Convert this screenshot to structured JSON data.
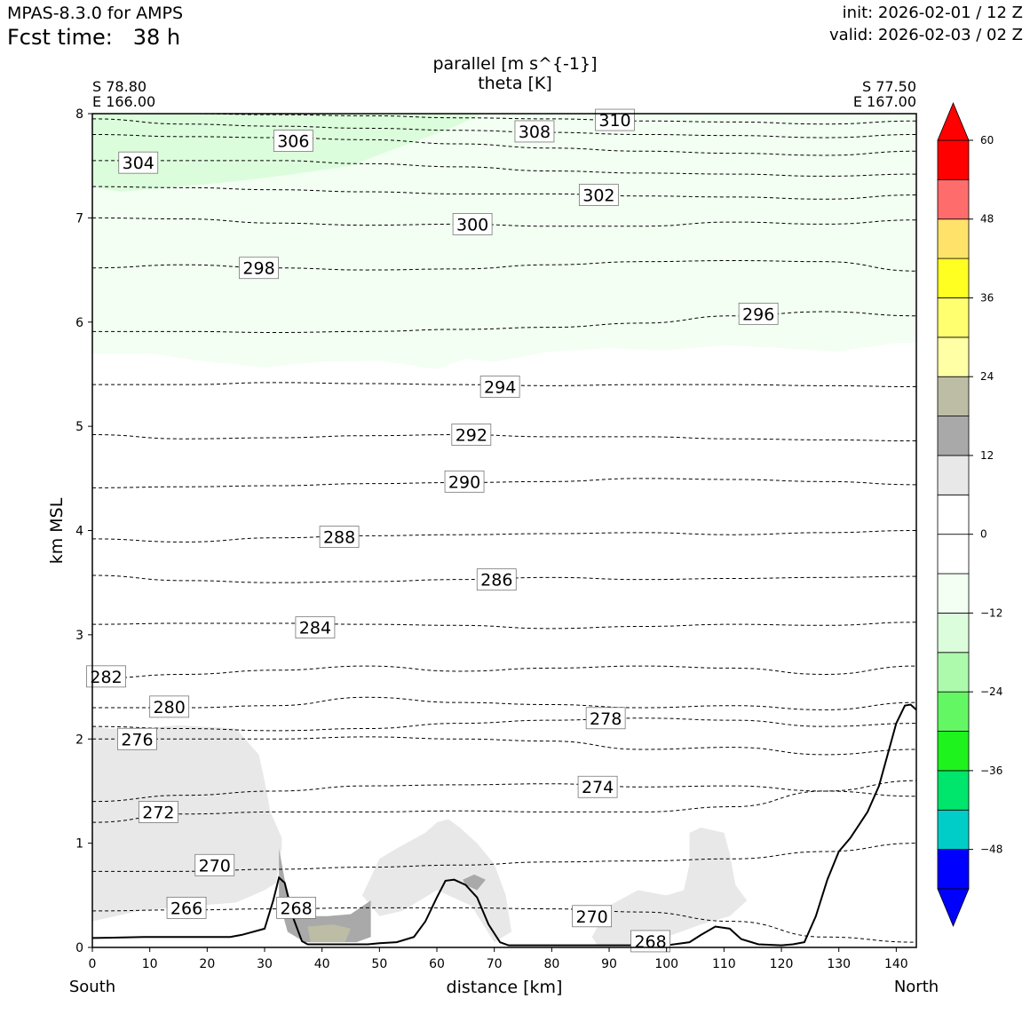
{
  "header": {
    "model": "MPAS-8.3.0 for AMPS",
    "fcst_label": "Fcst time:",
    "fcst_value": "38 h",
    "init": "init: 2026-02-01 / 12 Z",
    "valid": "valid: 2026-02-03 / 02 Z"
  },
  "chart_data": {
    "type": "contour_cross_section",
    "title_lines": [
      "parallel [m s^{-1}]",
      "theta [K]"
    ],
    "xlabel": "distance [km]",
    "ylabel": "km MSL",
    "xlim": [
      0,
      143.5
    ],
    "ylim": [
      0,
      8
    ],
    "xticks": [
      0,
      10,
      20,
      30,
      40,
      50,
      60,
      70,
      80,
      90,
      100,
      110,
      120,
      130,
      140
    ],
    "yticks": [
      0,
      1,
      2,
      3,
      4,
      5,
      6,
      7,
      8
    ],
    "left_end": {
      "lat": "S 78.80",
      "lon": "E 166.00",
      "direction": "South"
    },
    "right_end": {
      "lat": "S 77.50",
      "lon": "E 167.00",
      "direction": "North"
    },
    "colorbar": {
      "boundaries": [
        -54,
        -48,
        -42,
        -36,
        -30,
        -24,
        -18,
        -12,
        -6,
        0,
        6,
        12,
        18,
        24,
        30,
        36,
        42,
        48,
        54,
        60
      ],
      "colors": [
        "#0000ff",
        "#00cdc8",
        "#00e56b",
        "#1ef31e",
        "#64f764",
        "#adfaad",
        "#dcfddc",
        "#f2fff2",
        "#ffffff",
        "#ffffff",
        "#e8e8e8",
        "#a9a9a9",
        "#bdbda6",
        "#ffffa6",
        "#ffff70",
        "#ffff22",
        "#ffe26a",
        "#ff6c6c",
        "#ff0000"
      ],
      "under_color": "#0000ff",
      "over_color": "#ff0000",
      "tick_values": [
        -48,
        -36,
        -24,
        -12,
        0,
        12,
        24,
        36,
        48,
        60
      ],
      "tick_labels": [
        "−48",
        "−36",
        "−24",
        "−12",
        "0",
        "12",
        "24",
        "36",
        "48",
        "60"
      ]
    },
    "theta_contours": [
      {
        "value": 266,
        "label": "266",
        "label_pos": [
          16.4,
          0.38
        ],
        "y": [
          0.35,
          0.36,
          0.37,
          0.38,
          0.38,
          0.37,
          0.34,
          0.25,
          0.1,
          0.05
        ]
      },
      {
        "value": 268,
        "label": "268",
        "label_pos": [
          35.5,
          0.38
        ]
      },
      {
        "value": 268,
        "label": "268",
        "label_pos": [
          97.2,
          0.06
        ]
      },
      {
        "value": 270,
        "label": "270",
        "label_pos": [
          21.3,
          0.79
        ],
        "y": [
          0.73,
          0.73,
          0.75,
          0.77,
          0.79,
          0.82,
          0.83,
          0.85,
          0.92,
          1.0
        ]
      },
      {
        "value": 270,
        "label": "270",
        "label_pos": [
          87.0,
          0.3
        ]
      },
      {
        "value": 272,
        "label": "272",
        "label_pos": [
          11.5,
          1.3
        ],
        "y": [
          1.2,
          1.28,
          1.3,
          1.3,
          1.31,
          1.3,
          1.3,
          1.35,
          1.5,
          1.6
        ]
      },
      {
        "value": 274,
        "label": "274",
        "label_pos": [
          88.0,
          1.54
        ],
        "y": [
          1.4,
          1.46,
          1.5,
          1.55,
          1.56,
          1.57,
          1.54,
          1.55,
          1.5,
          1.45
        ]
      },
      {
        "value": 276,
        "label": "276",
        "label_pos": [
          7.8,
          2.0
        ],
        "y": [
          2.0,
          2.0,
          2.0,
          2.02,
          2.0,
          1.98,
          1.9,
          1.92,
          1.85,
          1.9
        ]
      },
      {
        "value": 278,
        "label": "278",
        "label_pos": [
          89.4,
          2.2
        ],
        "y": [
          2.12,
          2.1,
          2.08,
          2.1,
          2.15,
          2.18,
          2.2,
          2.18,
          2.12,
          2.15
        ]
      },
      {
        "value": 280,
        "label": "280",
        "label_pos": [
          13.4,
          2.31
        ],
        "y": [
          2.3,
          2.3,
          2.32,
          2.4,
          2.35,
          2.33,
          2.3,
          2.32,
          2.28,
          2.35
        ]
      },
      {
        "value": 282,
        "label": "282",
        "label_pos": [
          2.4,
          2.6
        ],
        "y": [
          2.58,
          2.62,
          2.66,
          2.7,
          2.65,
          2.68,
          2.7,
          2.68,
          2.62,
          2.7
        ]
      },
      {
        "value": 284,
        "label": "284",
        "label_pos": [
          38.8,
          3.07
        ],
        "y": [
          3.1,
          3.11,
          3.11,
          3.1,
          3.09,
          3.06,
          3.08,
          3.1,
          3.09,
          3.12
        ]
      },
      {
        "value": 286,
        "label": "286",
        "label_pos": [
          70.4,
          3.53
        ],
        "y": [
          3.57,
          3.52,
          3.5,
          3.51,
          3.53,
          3.55,
          3.53,
          3.54,
          3.55,
          3.56
        ]
      },
      {
        "value": 288,
        "label": "288",
        "label_pos": [
          43.0,
          3.94
        ],
        "y": [
          3.92,
          3.89,
          3.93,
          3.95,
          3.96,
          3.97,
          3.98,
          3.96,
          3.98,
          4.0
        ]
      },
      {
        "value": 290,
        "label": "290",
        "label_pos": [
          64.8,
          4.47
        ],
        "y": [
          4.41,
          4.42,
          4.43,
          4.45,
          4.46,
          4.47,
          4.5,
          4.49,
          4.47,
          4.44
        ]
      },
      {
        "value": 292,
        "label": "292",
        "label_pos": [
          66.0,
          4.92
        ],
        "y": [
          4.92,
          4.88,
          4.89,
          4.91,
          4.92,
          4.9,
          4.9,
          4.88,
          4.87,
          4.86
        ]
      },
      {
        "value": 294,
        "label": "294",
        "label_pos": [
          71.0,
          5.38
        ],
        "y": [
          5.4,
          5.4,
          5.42,
          5.41,
          5.4,
          5.39,
          5.4,
          5.4,
          5.39,
          5.38
        ]
      },
      {
        "value": 296,
        "label": "296",
        "label_pos": [
          116.0,
          6.08
        ],
        "y": [
          5.91,
          5.91,
          5.9,
          5.91,
          5.93,
          5.95,
          5.99,
          6.06,
          6.1,
          6.06
        ]
      },
      {
        "value": 298,
        "label": "298",
        "label_pos": [
          29.0,
          6.52
        ],
        "y": [
          6.52,
          6.55,
          6.52,
          6.5,
          6.51,
          6.55,
          6.58,
          6.59,
          6.58,
          6.49
        ]
      },
      {
        "value": 300,
        "label": "300",
        "label_pos": [
          66.2,
          6.94
        ],
        "y": [
          7.0,
          6.99,
          6.95,
          6.93,
          6.94,
          6.92,
          6.92,
          6.96,
          6.94,
          6.98
        ]
      },
      {
        "value": 302,
        "label": "302",
        "label_pos": [
          88.2,
          7.22
        ],
        "y": [
          7.3,
          7.29,
          7.27,
          7.25,
          7.23,
          7.23,
          7.21,
          7.2,
          7.18,
          7.22
        ]
      },
      {
        "value": 304,
        "label": "304",
        "label_pos": [
          8.0,
          7.53
        ],
        "y": [
          7.55,
          7.55,
          7.55,
          7.52,
          7.49,
          7.45,
          7.43,
          7.42,
          7.4,
          7.42
        ]
      },
      {
        "value": 306,
        "label": "306",
        "label_pos": [
          35.0,
          7.74
        ],
        "y": [
          7.8,
          7.78,
          7.77,
          7.75,
          7.71,
          7.67,
          7.64,
          7.62,
          7.6,
          7.64
        ]
      },
      {
        "value": 308,
        "label": "308",
        "label_pos": [
          77.0,
          7.83
        ],
        "y": [
          7.95,
          7.9,
          7.88,
          7.86,
          7.84,
          7.82,
          7.8,
          7.79,
          7.77,
          7.8
        ]
      },
      {
        "value": 310,
        "label": "310",
        "label_pos": [
          91.0,
          7.94
        ],
        "y": [
          8.0,
          8.0,
          7.99,
          7.98,
          7.96,
          7.95,
          7.93,
          7.92,
          7.9,
          7.93
        ]
      }
    ],
    "terrain_height_km": {
      "x": [
        0,
        9,
        24,
        26,
        30,
        31.5,
        32.5,
        33.5,
        35,
        36.5,
        37.5,
        48,
        50,
        53,
        56,
        58,
        60,
        61.5,
        63,
        65,
        67,
        69,
        71,
        72.5,
        74,
        80,
        90,
        100,
        104,
        106,
        108.5,
        111,
        113,
        116,
        120,
        122,
        124,
        126,
        128,
        130,
        132,
        135,
        137,
        139,
        140,
        141.5,
        142.5,
        143.5
      ],
      "y": [
        0.09,
        0.1,
        0.1,
        0.12,
        0.18,
        0.45,
        0.67,
        0.62,
        0.28,
        0.06,
        0.03,
        0.03,
        0.04,
        0.05,
        0.1,
        0.25,
        0.48,
        0.64,
        0.65,
        0.6,
        0.48,
        0.22,
        0.05,
        0.02,
        0.02,
        0.02,
        0.02,
        0.02,
        0.05,
        0.12,
        0.2,
        0.18,
        0.08,
        0.03,
        0.02,
        0.03,
        0.05,
        0.3,
        0.65,
        0.92,
        1.05,
        1.3,
        1.55,
        1.95,
        2.15,
        2.32,
        2.33,
        2.28
      ]
    },
    "shaded_regions": [
      {
        "range": [
          6,
          12
        ],
        "description": "weak positive parallel wind near surface layer south of 35 km and around 60-70 km and 85-110 km"
      },
      {
        "range": [
          12,
          18
        ],
        "description": "moderate positive wind in valley near 32-48 km"
      },
      {
        "range": [
          18,
          24
        ],
        "description": "small pocket near 36-45 km at surface"
      },
      {
        "range": [
          -12,
          -6
        ],
        "description": "weak negative wind above ~5.6 km"
      },
      {
        "range": [
          -18,
          -12
        ],
        "description": "upper-left region above ~7.3 km, 0-68 km"
      }
    ]
  }
}
